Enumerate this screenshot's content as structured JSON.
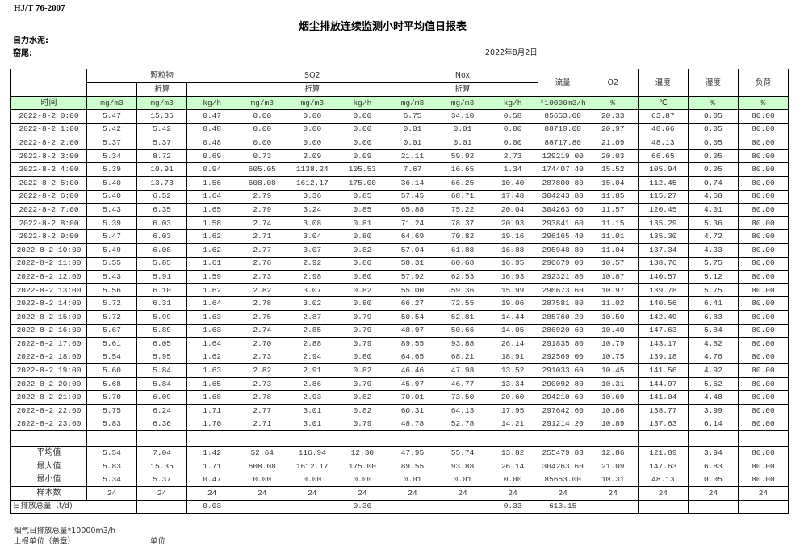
{
  "standard": "HJ/T  76-2007",
  "title": "烟尘排放连续监测小时平均值日报表",
  "company_label": "自力水泥:",
  "kiln_label": "窑尾:",
  "date": "2022年8月2日",
  "header": {
    "groups": [
      "颗粒物",
      "SO2",
      "Nox"
    ],
    "converted": "折算",
    "single": [
      "流量",
      "O2",
      "温度",
      "湿度",
      "负荷"
    ],
    "units": [
      "时间",
      "mg/m3",
      "mg/m3",
      "kg/h",
      "mg/m3",
      "mg/m3",
      "kg/h",
      "mg/m3",
      "mg/m3",
      "kg/h",
      "*10000m3/h",
      "%",
      "℃",
      "%",
      "%"
    ]
  },
  "unit_row_color": "#ccffcc",
  "rows": [
    [
      "2022-8-2 0:00",
      "5.47",
      "15.35",
      "0.47",
      "0.00",
      "0.00",
      "0.00",
      "6.75",
      "34.10",
      "0.58",
      "85653.00",
      "20.33",
      "63.87",
      "0.05",
      "80.00"
    ],
    [
      "2022-8-2 1:00",
      "5.42",
      "5.42",
      "0.48",
      "0.00",
      "0.00",
      "0.00",
      "0.01",
      "0.01",
      "0.00",
      "88719.00",
      "20.97",
      "48.66",
      "0.05",
      "80.00"
    ],
    [
      "2022-8-2 2:00",
      "5.37",
      "5.37",
      "0.48",
      "0.00",
      "0.00",
      "0.00",
      "0.01",
      "0.01",
      "0.00",
      "88717.80",
      "21.09",
      "48.13",
      "0.05",
      "80.00"
    ],
    [
      "2022-8-2 3:00",
      "5.34",
      "8.72",
      "0.69",
      "0.73",
      "2.09",
      "0.09",
      "21.11",
      "59.92",
      "2.73",
      "129219.00",
      "20.03",
      "66.65",
      "0.05",
      "80.00"
    ],
    [
      "2022-8-2 4:00",
      "5.39",
      "10.91",
      "0.94",
      "605.05",
      "1138.24",
      "105.53",
      "7.67",
      "16.65",
      "1.34",
      "174407.40",
      "15.52",
      "105.94",
      "0.05",
      "80.00"
    ],
    [
      "2022-8-2 5:00",
      "5.40",
      "13.73",
      "1.56",
      "608.08",
      "1612.17",
      "175.00",
      "36.14",
      "66.25",
      "10.40",
      "287800.80",
      "15.04",
      "112.45",
      "0.74",
      "80.00"
    ],
    [
      "2022-8-2 6:00",
      "5.40",
      "6.52",
      "1.64",
      "2.79",
      "3.36",
      "0.85",
      "57.45",
      "68.71",
      "17.48",
      "304243.80",
      "11.85",
      "115.27",
      "4.58",
      "80.00"
    ],
    [
      "2022-8-2 7:00",
      "5.43",
      "6.35",
      "1.65",
      "2.79",
      "3.24",
      "0.85",
      "65.88",
      "75.22",
      "20.04",
      "304263.60",
      "11.57",
      "120.45",
      "4.01",
      "80.00"
    ],
    [
      "2022-8-2 8:00",
      "5.39",
      "6.03",
      "1.58",
      "2.74",
      "3.08",
      "0.81",
      "71.24",
      "78.37",
      "20.93",
      "293841.60",
      "11.15",
      "135.29",
      "5.36",
      "80.00"
    ],
    [
      "2022-8-2 9:00",
      "5.47",
      "6.03",
      "1.62",
      "2.71",
      "3.04",
      "0.80",
      "64.69",
      "70.82",
      "19.16",
      "296165.40",
      "11.01",
      "135.30",
      "4.72",
      "80.00"
    ],
    [
      "2022-8-2 10:00",
      "5.49",
      "6.08",
      "1.62",
      "2.77",
      "3.07",
      "0.82",
      "57.04",
      "61.88",
      "16.88",
      "295948.80",
      "11.04",
      "137.34",
      "4.33",
      "80.00"
    ],
    [
      "2022-8-2 11:00",
      "5.55",
      "5.85",
      "1.61",
      "2.76",
      "2.92",
      "0.80",
      "58.31",
      "60.68",
      "16.95",
      "290679.00",
      "10.57",
      "138.76",
      "5.75",
      "80.00"
    ],
    [
      "2022-8-2 12:00",
      "5.43",
      "5.91",
      "1.59",
      "2.73",
      "2.98",
      "0.80",
      "57.92",
      "62.53",
      "16.93",
      "292321.80",
      "10.87",
      "140.57",
      "5.12",
      "80.00"
    ],
    [
      "2022-8-2 13:00",
      "5.56",
      "6.10",
      "1.62",
      "2.82",
      "3.07",
      "0.82",
      "55.00",
      "59.36",
      "15.99",
      "290673.60",
      "10.97",
      "139.78",
      "5.75",
      "80.00"
    ],
    [
      "2022-8-2 14:00",
      "5.72",
      "6.31",
      "1.64",
      "2.78",
      "3.02",
      "0.80",
      "66.27",
      "72.55",
      "19.06",
      "287581.80",
      "11.02",
      "140.56",
      "6.41",
      "80.00"
    ],
    [
      "2022-8-2 15:00",
      "5.72",
      "5.99",
      "1.63",
      "2.75",
      "2.87",
      "0.79",
      "50.54",
      "52.81",
      "14.44",
      "285760.20",
      "10.50",
      "142.49",
      "6.83",
      "80.00"
    ],
    [
      "2022-8-2 16:00",
      "5.67",
      "5.89",
      "1.63",
      "2.74",
      "2.85",
      "0.79",
      "48.97",
      "50.66",
      "14.05",
      "286920.60",
      "10.40",
      "147.63",
      "5.84",
      "80.00"
    ],
    [
      "2022-8-2 17:00",
      "5.61",
      "6.05",
      "1.64",
      "2.70",
      "2.88",
      "0.79",
      "89.55",
      "93.88",
      "26.14",
      "291835.80",
      "10.79",
      "143.17",
      "4.82",
      "80.00"
    ],
    [
      "2022-8-2 18:00",
      "5.54",
      "5.95",
      "1.62",
      "2.73",
      "2.94",
      "0.80",
      "64.65",
      "68.21",
      "18.91",
      "292569.00",
      "10.75",
      "139.18",
      "4.76",
      "80.00"
    ],
    [
      "2022-8-2 19:00",
      "5.60",
      "5.84",
      "1.63",
      "2.82",
      "2.91",
      "0.82",
      "46.46",
      "47.98",
      "13.52",
      "291033.60",
      "10.45",
      "141.56",
      "4.92",
      "80.00"
    ],
    [
      "2022-8-2 20:00",
      "5.68",
      "5.84",
      "1.65",
      "2.73",
      "2.86",
      "0.79",
      "45.97",
      "46.77",
      "13.34",
      "290092.80",
      "10.31",
      "144.97",
      "5.62",
      "80.00"
    ],
    [
      "2022-8-2 21:00",
      "5.70",
      "6.09",
      "1.68",
      "2.78",
      "2.93",
      "0.82",
      "70.01",
      "73.50",
      "20.60",
      "294210.60",
      "10.69",
      "141.04",
      "4.48",
      "80.00"
    ],
    [
      "2022-8-2 22:00",
      "5.75",
      "6.24",
      "1.71",
      "2.77",
      "3.01",
      "0.82",
      "60.31",
      "64.13",
      "17.95",
      "297642.60",
      "10.86",
      "138.77",
      "3.99",
      "80.00"
    ],
    [
      "2022-8-2 23:00",
      "5.83",
      "6.36",
      "1.70",
      "2.71",
      "3.01",
      "0.79",
      "48.78",
      "52.78",
      "14.21",
      "291214.20",
      "10.89",
      "137.63",
      "6.14",
      "80.00"
    ]
  ],
  "stats": [
    [
      "平均值",
      "5.54",
      "7.04",
      "1.42",
      "52.64",
      "116.94",
      "12.30",
      "47.95",
      "55.74",
      "13.82",
      "255479.83",
      "12.86",
      "121.89",
      "3.94",
      "80.00"
    ],
    [
      "最大值",
      "5.83",
      "15.35",
      "1.71",
      "608.08",
      "1612.17",
      "175.00",
      "89.55",
      "93.88",
      "26.14",
      "304263.60",
      "21.09",
      "147.63",
      "6.83",
      "80.00"
    ],
    [
      "最小值",
      "5.34",
      "5.37",
      "0.47",
      "0.00",
      "0.00",
      "0.00",
      "0.01",
      "0.01",
      "0.00",
      "85653.00",
      "10.31",
      "48.13",
      "0.05",
      "80.00"
    ],
    [
      "样本数",
      "24",
      "24",
      "24",
      "24",
      "24",
      "24",
      "24",
      "24",
      "24",
      "24",
      "24",
      "24",
      "24",
      "24"
    ]
  ],
  "total": {
    "label": "日排放总量（t/d)",
    "values": [
      "",
      "0.03",
      "",
      "",
      "0.30",
      "",
      "",
      "0.33",
      "613.15",
      "",
      "",
      "",
      ""
    ]
  },
  "footer": {
    "flue_gas_total": "烟气日排放总量*10000m3/h",
    "reporting_unit": "上报单位（盖章）",
    "unit": "单位"
  }
}
